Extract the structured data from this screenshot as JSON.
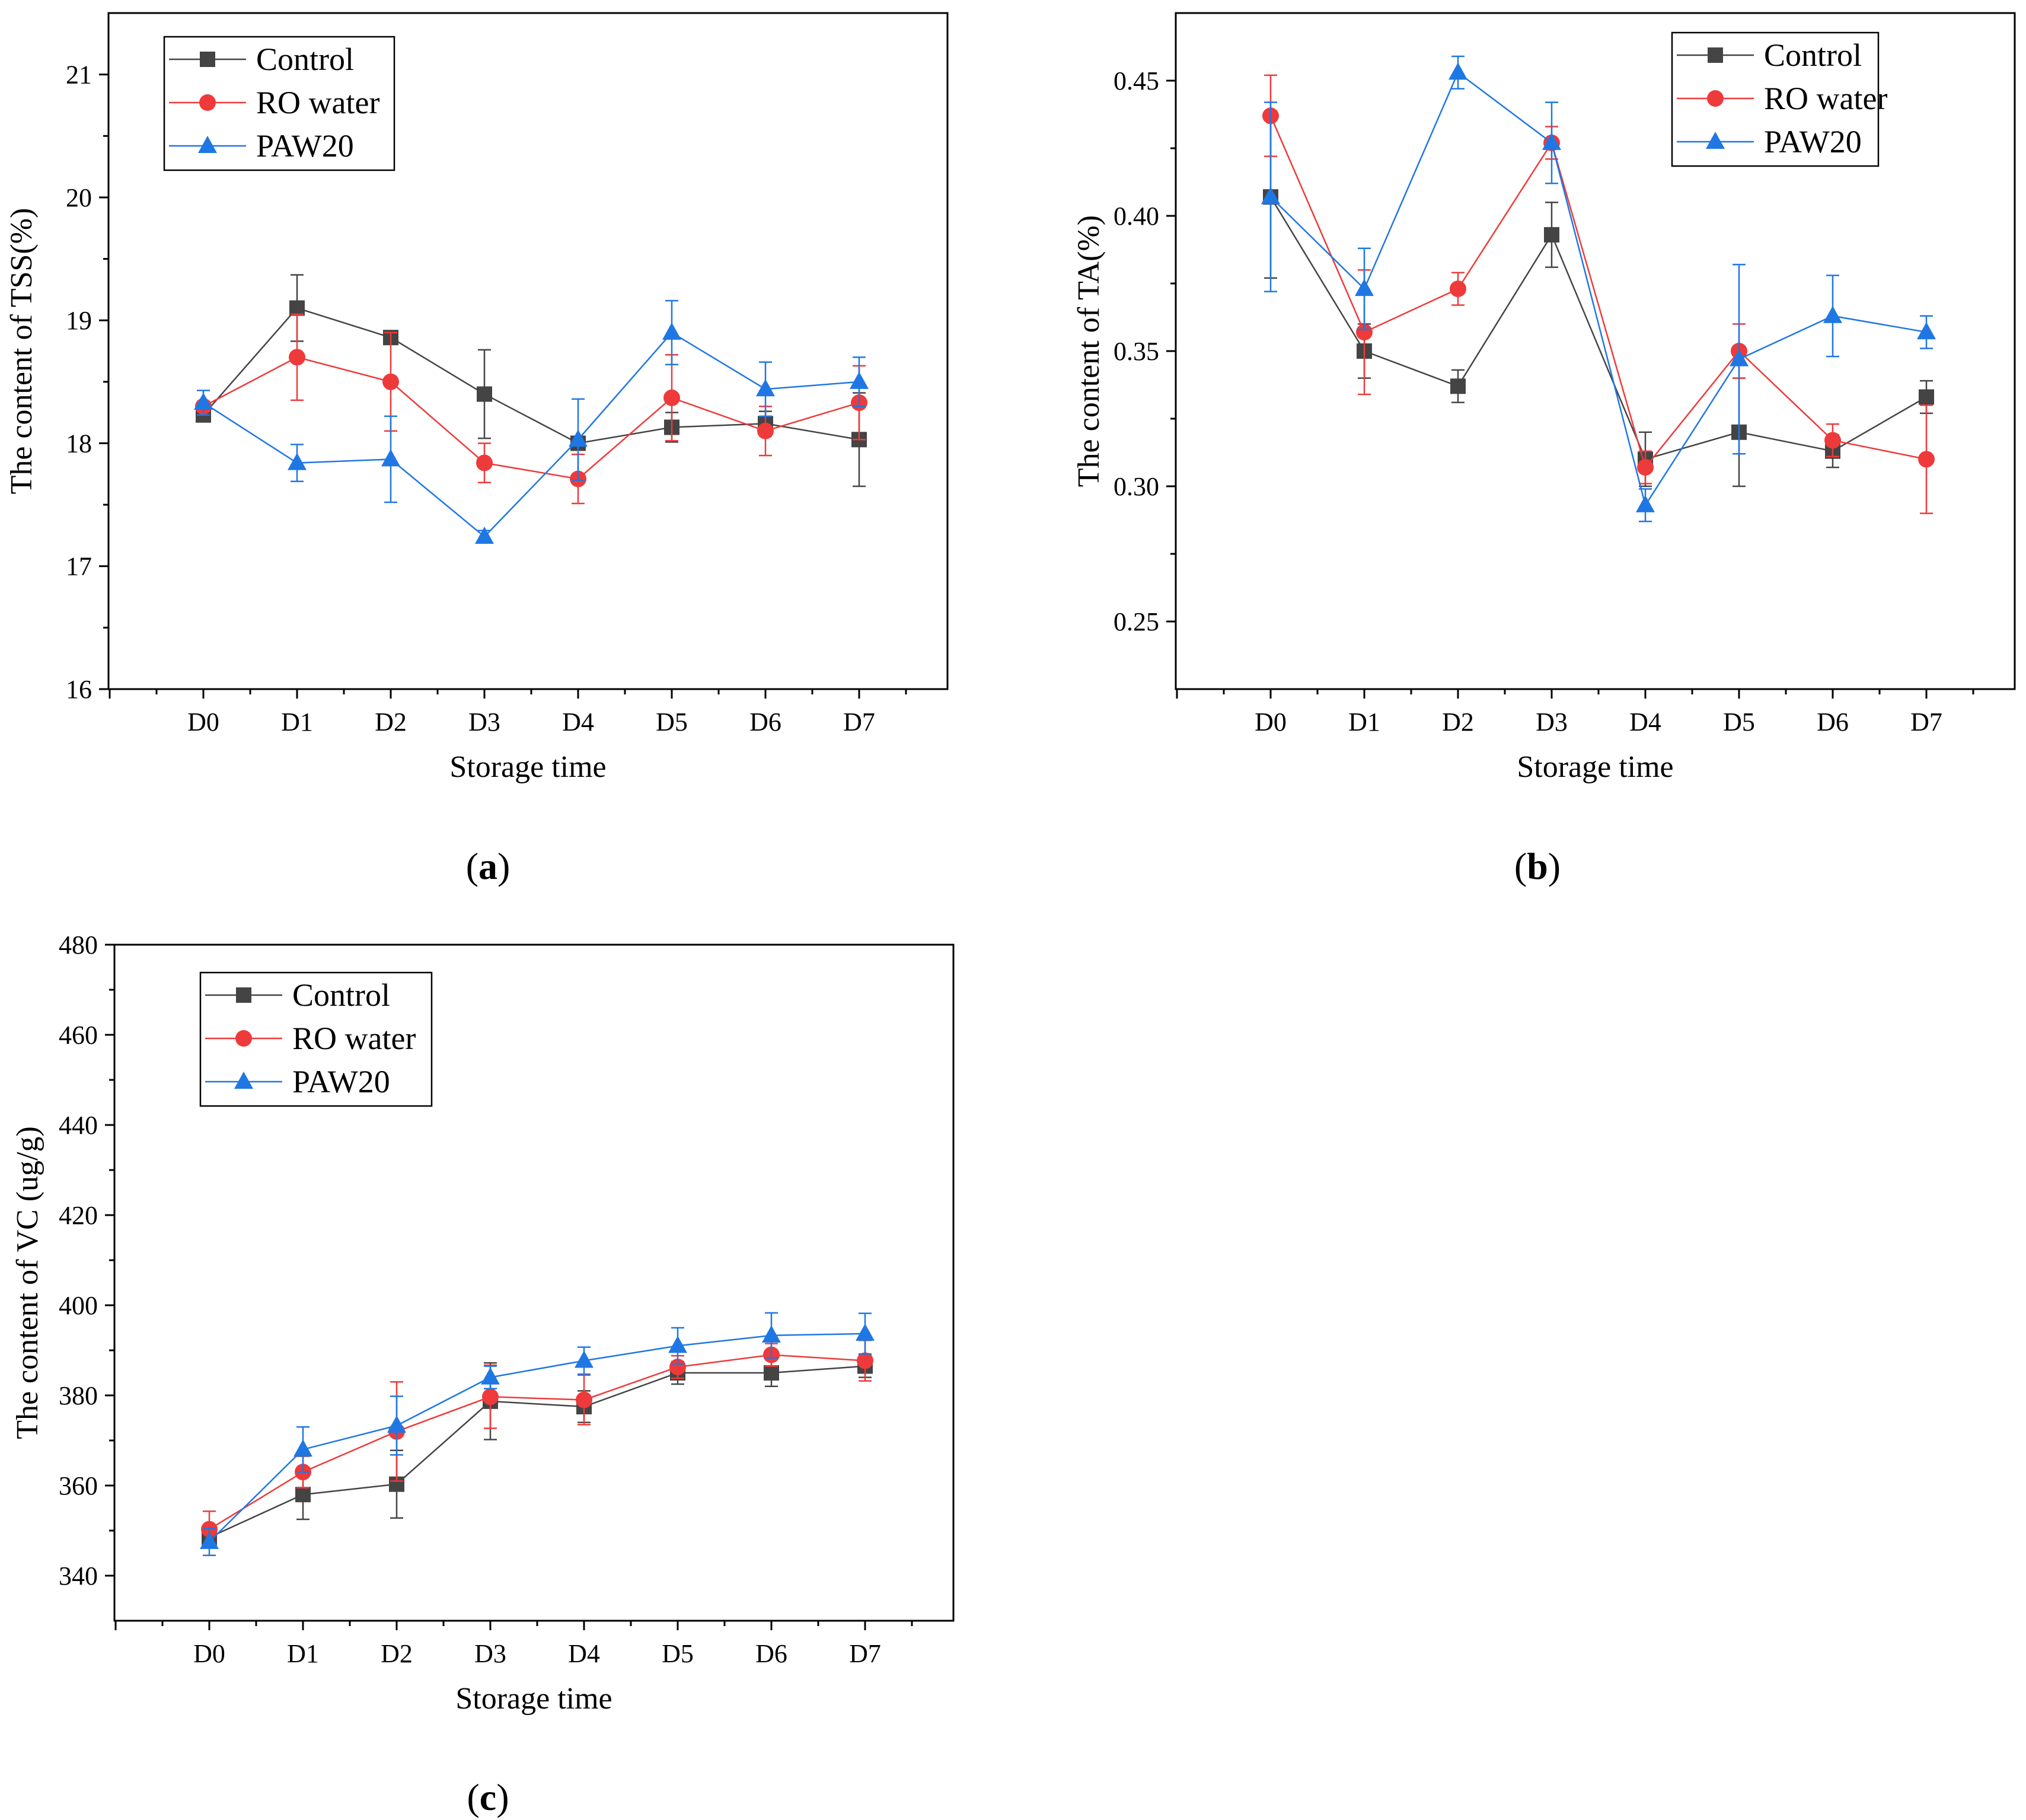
{
  "colors": {
    "Control": "#444444",
    "RO water": "#ee3a3a",
    "PAW20": "#1f77e4"
  },
  "markers": {
    "Control": "square",
    "RO water": "circle",
    "PAW20": "triangle"
  },
  "chart_data": [
    {
      "id": "a",
      "type": "line",
      "panel_label": "a",
      "xlabel": "Storage time",
      "ylabel": "The content of TSS(%)",
      "categories": [
        "D0",
        "D1",
        "D2",
        "D3",
        "D4",
        "D5",
        "D6",
        "D7"
      ],
      "ylim": [
        16,
        21.5
      ],
      "yticks": [
        16,
        17,
        18,
        19,
        20,
        21
      ],
      "ytick_labels": [
        "16",
        "17",
        "18",
        "19",
        "20",
        "21"
      ],
      "legend_position": "top-left",
      "series": [
        {
          "name": "Control",
          "values": [
            18.23,
            19.1,
            18.86,
            18.4,
            18.0,
            18.13,
            18.16,
            18.03
          ],
          "errors": [
            0.05,
            0.27,
            0.05,
            0.36,
            0.05,
            0.12,
            0.1,
            0.38
          ]
        },
        {
          "name": "RO water",
          "values": [
            18.3,
            18.7,
            18.5,
            17.84,
            17.71,
            18.37,
            18.1,
            18.33
          ],
          "errors": [
            0.04,
            0.35,
            0.4,
            0.16,
            0.2,
            0.35,
            0.2,
            0.3
          ]
        },
        {
          "name": "PAW20",
          "values": [
            18.33,
            17.84,
            17.87,
            17.24,
            18.03,
            18.9,
            18.44,
            18.5
          ],
          "errors": [
            0.1,
            0.15,
            0.35,
            0.05,
            0.33,
            0.26,
            0.22,
            0.2
          ]
        }
      ]
    },
    {
      "id": "b",
      "type": "line",
      "panel_label": "b",
      "xlabel": "Storage time",
      "ylabel": "The content of TA(%)",
      "categories": [
        "D0",
        "D1",
        "D2",
        "D3",
        "D4",
        "D5",
        "D6",
        "D7"
      ],
      "ylim": [
        0.225,
        0.475
      ],
      "yticks": [
        0.25,
        0.3,
        0.35,
        0.4,
        0.45
      ],
      "ytick_labels": [
        "0.25",
        "0.30",
        "0.35",
        "0.40",
        "0.45"
      ],
      "legend_position": "top-right",
      "series": [
        {
          "name": "Control",
          "values": [
            0.407,
            0.35,
            0.337,
            0.393,
            0.31,
            0.32,
            0.313,
            0.333
          ],
          "errors": [
            0.03,
            0.01,
            0.006,
            0.012,
            0.01,
            0.02,
            0.006,
            0.006
          ]
        },
        {
          "name": "RO water",
          "values": [
            0.437,
            0.357,
            0.373,
            0.427,
            0.307,
            0.35,
            0.317,
            0.31
          ],
          "errors": [
            0.015,
            0.023,
            0.006,
            0.006,
            0.006,
            0.01,
            0.006,
            0.02
          ]
        },
        {
          "name": "PAW20",
          "values": [
            0.407,
            0.373,
            0.453,
            0.427,
            0.293,
            0.347,
            0.363,
            0.357
          ],
          "errors": [
            0.035,
            0.015,
            0.006,
            0.015,
            0.006,
            0.035,
            0.015,
            0.006
          ]
        }
      ]
    },
    {
      "id": "c",
      "type": "line",
      "panel_label": "c",
      "xlabel": "Storage time",
      "ylabel": "The content of VC (ug/g)",
      "categories": [
        "D0",
        "D1",
        "D2",
        "D3",
        "D4",
        "D5",
        "D6",
        "D7"
      ],
      "ylim": [
        330,
        480
      ],
      "yticks": [
        340,
        360,
        380,
        400,
        420,
        440,
        460,
        480
      ],
      "ytick_labels": [
        "340",
        "360",
        "380",
        "400",
        "420",
        "440",
        "460",
        "480"
      ],
      "legend_position": "top-left",
      "series": [
        {
          "name": "Control",
          "values": [
            348.5,
            358.0,
            360.3,
            378.7,
            377.5,
            385.0,
            385.0,
            386.5
          ],
          "errors": [
            2.0,
            5.5,
            7.5,
            8.5,
            3.5,
            2.5,
            3.0,
            2.5
          ]
        },
        {
          "name": "RO water",
          "values": [
            350.3,
            363.0,
            372.0,
            379.7,
            379.0,
            386.3,
            389.0,
            387.7
          ],
          "errors": [
            4.0,
            3.5,
            11.0,
            7.0,
            5.5,
            2.5,
            2.5,
            4.5
          ]
        },
        {
          "name": "PAW20",
          "values": [
            347.5,
            368.0,
            373.3,
            384.0,
            387.7,
            391.0,
            393.3,
            393.7
          ],
          "errors": [
            3.0,
            5.0,
            6.5,
            2.5,
            3.0,
            4.0,
            5.0,
            4.5
          ]
        }
      ]
    }
  ]
}
